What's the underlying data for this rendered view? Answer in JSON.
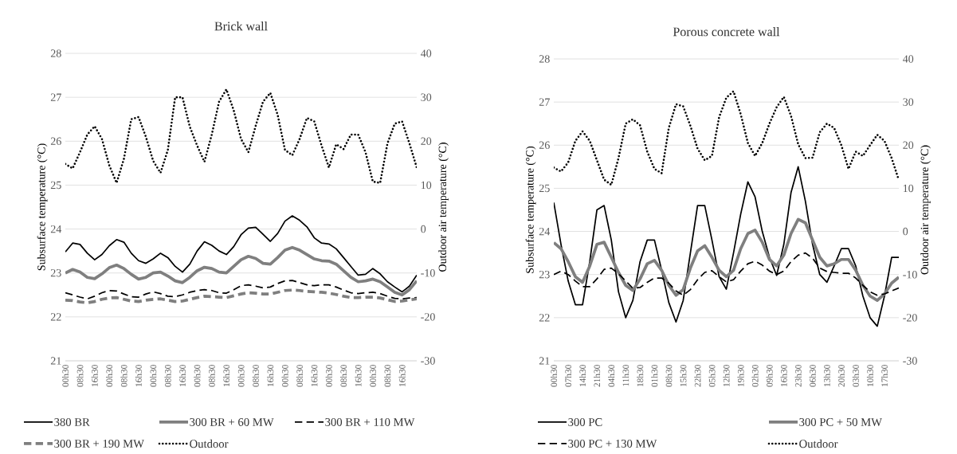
{
  "chart_data": [
    {
      "type": "line",
      "title": "Brick wall",
      "ylabel": "Subsurface temperature (°C)",
      "y2label": "Outdoor air temperature (°C)",
      "categories": [
        "00h30",
        null,
        "08h30",
        null,
        "16h30",
        null,
        "00h30",
        null,
        "08h30",
        null,
        "16h30",
        null,
        "00h30",
        null,
        "08h30",
        null,
        "16h30",
        null,
        "00h30",
        null,
        "08h30",
        null,
        "16h30",
        null,
        "00h30",
        null,
        "08h30",
        null,
        "16h30",
        null,
        "00h30",
        null,
        "08h30",
        null,
        "16h30",
        null,
        "00h30",
        null,
        "08h30",
        null,
        "16h30",
        null,
        "00h30",
        null,
        "08h30",
        null,
        "16h30",
        null,
        null
      ],
      "ylim": [
        21,
        28
      ],
      "yticks": [
        21,
        22,
        23,
        24,
        25,
        26,
        27,
        28
      ],
      "y2lim": [
        -30,
        40
      ],
      "y2ticks": [
        -30,
        -20,
        -10,
        0,
        10,
        20,
        30,
        40
      ],
      "grid": "y",
      "legend": "bottom",
      "series": [
        {
          "name": "380 BR",
          "color": "#000000",
          "line_style": "solid",
          "values": [
            23.48,
            23.68,
            23.65,
            23.45,
            23.3,
            23.42,
            23.62,
            23.76,
            23.7,
            23.45,
            23.28,
            23.22,
            23.32,
            23.45,
            23.35,
            23.15,
            23.02,
            23.2,
            23.5,
            23.71,
            23.63,
            23.5,
            23.42,
            23.6,
            23.87,
            24.02,
            24.04,
            23.88,
            23.72,
            23.9,
            24.18,
            24.3,
            24.2,
            24.05,
            23.8,
            23.68,
            23.66,
            23.55,
            23.35,
            23.15,
            22.95,
            22.97,
            23.1,
            22.98,
            22.8,
            22.68,
            22.57,
            22.7,
            22.95
          ]
        },
        {
          "name": "300 BR + 60 MW",
          "color": "#7f7f7f",
          "line_style": "solid",
          "values": [
            23.0,
            23.08,
            23.02,
            22.9,
            22.87,
            22.98,
            23.12,
            23.18,
            23.1,
            22.97,
            22.86,
            22.9,
            23.0,
            23.02,
            22.93,
            22.82,
            22.78,
            22.9,
            23.05,
            23.13,
            23.1,
            23.02,
            23.0,
            23.15,
            23.3,
            23.38,
            23.33,
            23.22,
            23.2,
            23.35,
            23.52,
            23.58,
            23.52,
            23.42,
            23.32,
            23.28,
            23.27,
            23.2,
            23.05,
            22.9,
            22.8,
            22.82,
            22.86,
            22.8,
            22.68,
            22.56,
            22.5,
            22.62,
            22.82
          ]
        },
        {
          "name": "300 BR + 110 MW",
          "color": "#000000",
          "line_style": "dashed",
          "values": [
            22.55,
            22.5,
            22.45,
            22.41,
            22.47,
            22.55,
            22.6,
            22.59,
            22.52,
            22.46,
            22.45,
            22.52,
            22.57,
            22.53,
            22.47,
            22.46,
            22.5,
            22.56,
            22.6,
            22.62,
            22.6,
            22.55,
            22.54,
            22.62,
            22.71,
            22.73,
            22.7,
            22.66,
            22.68,
            22.76,
            22.82,
            22.83,
            22.78,
            22.73,
            22.71,
            22.73,
            22.73,
            22.68,
            22.61,
            22.55,
            22.53,
            22.55,
            22.56,
            22.53,
            22.47,
            22.42,
            22.41,
            22.43,
            22.44
          ]
        },
        {
          "name": "300 BR + 190 MW",
          "color": "#7f7f7f",
          "line_style": "dashed",
          "values": [
            22.38,
            22.37,
            22.34,
            22.32,
            22.35,
            22.4,
            22.43,
            22.44,
            22.4,
            22.36,
            22.35,
            22.38,
            22.4,
            22.41,
            22.38,
            22.35,
            22.36,
            22.4,
            22.44,
            22.47,
            22.46,
            22.45,
            22.44,
            22.48,
            22.52,
            22.55,
            22.54,
            22.52,
            22.52,
            22.56,
            22.6,
            22.61,
            22.6,
            22.58,
            22.57,
            22.56,
            22.54,
            22.51,
            22.47,
            22.44,
            22.44,
            22.45,
            22.45,
            22.43,
            22.39,
            22.35,
            22.36,
            22.39,
            22.41
          ]
        },
        {
          "name": "Outdoor",
          "color": "#000000",
          "line_style": "dotted",
          "axis": "y2",
          "values": [
            14.8,
            13.8,
            17.5,
            21.5,
            23.4,
            20.5,
            14.5,
            10.5,
            16,
            25,
            25.5,
            21,
            15.5,
            12.8,
            18,
            30,
            30,
            23.3,
            19,
            15.3,
            21.5,
            29,
            31.8,
            27,
            20.5,
            17.5,
            23.5,
            29,
            31,
            26,
            18,
            16.8,
            20.5,
            25.3,
            24.5,
            19,
            14,
            19.3,
            18.2,
            21.5,
            21.5,
            17.5,
            10.8,
            10.5,
            19.5,
            24,
            24.5,
            19.5,
            14
          ]
        }
      ]
    },
    {
      "type": "line",
      "title": "Porous concrete wall",
      "ylabel": "Subsurface temperature (°C)",
      "y2label": "Outdoor air temperature (°C)",
      "categories": [
        "00h30",
        null,
        "07h30",
        null,
        "14h30",
        null,
        "21h30",
        null,
        "04h30",
        null,
        "11h30",
        null,
        "18h30",
        null,
        "01h30",
        null,
        "08h30",
        null,
        "15h30",
        null,
        "22h30",
        null,
        "05h30",
        null,
        "12h30",
        null,
        "19h30",
        null,
        "02h30",
        null,
        "09h30",
        null,
        "16h30",
        null,
        "23h30",
        null,
        "06h30",
        null,
        "13h30",
        null,
        "20h30",
        null,
        "03h30",
        null,
        "10h30",
        null,
        "17h30",
        null,
        null
      ],
      "ylim": [
        21,
        28
      ],
      "yticks": [
        21,
        22,
        23,
        24,
        25,
        26,
        27,
        28
      ],
      "y2lim": [
        -30,
        40
      ],
      "y2ticks": [
        -30,
        -20,
        -10,
        0,
        10,
        20,
        30,
        40
      ],
      "grid": "y",
      "legend": "bottom",
      "series": [
        {
          "name": "300 PC",
          "color": "#000000",
          "line_style": "solid",
          "values": [
            24.67,
            23.7,
            22.85,
            22.3,
            22.3,
            23.3,
            24.5,
            24.6,
            23.8,
            22.6,
            22.0,
            22.4,
            23.3,
            23.8,
            23.8,
            23.1,
            22.35,
            21.9,
            22.4,
            23.5,
            24.6,
            24.6,
            23.8,
            22.95,
            22.66,
            23.5,
            24.4,
            25.15,
            24.8,
            24.0,
            23.4,
            22.98,
            23.7,
            24.9,
            25.5,
            24.7,
            23.7,
            23.0,
            22.82,
            23.2,
            23.6,
            23.6,
            23.2,
            22.5,
            22.0,
            21.8,
            22.5,
            23.4,
            23.4
          ]
        },
        {
          "name": "300 PC + 50 MW",
          "color": "#7f7f7f",
          "line_style": "solid",
          "values": [
            23.74,
            23.6,
            23.3,
            22.95,
            22.82,
            23.2,
            23.7,
            23.75,
            23.4,
            23.05,
            22.75,
            22.63,
            22.9,
            23.25,
            23.33,
            23.1,
            22.75,
            22.52,
            22.65,
            23.15,
            23.55,
            23.67,
            23.4,
            23.1,
            22.95,
            23.1,
            23.6,
            23.95,
            24.03,
            23.75,
            23.35,
            23.2,
            23.45,
            23.95,
            24.28,
            24.2,
            23.8,
            23.4,
            23.2,
            23.25,
            23.35,
            23.35,
            23.1,
            22.75,
            22.5,
            22.4,
            22.55,
            22.8,
            22.94
          ]
        },
        {
          "name": "300 PC + 130 MW",
          "color": "#000000",
          "line_style": "dashed",
          "values": [
            23.0,
            23.08,
            23.0,
            22.85,
            22.72,
            22.72,
            22.9,
            23.12,
            23.15,
            23.02,
            22.85,
            22.68,
            22.7,
            22.82,
            22.92,
            22.92,
            22.8,
            22.62,
            22.52,
            22.65,
            22.88,
            23.05,
            23.09,
            22.95,
            22.83,
            22.88,
            23.08,
            23.25,
            23.31,
            23.22,
            23.08,
            23.0,
            23.08,
            23.3,
            23.45,
            23.5,
            23.38,
            23.15,
            23.07,
            23.05,
            23.03,
            23.03,
            22.92,
            22.75,
            22.6,
            22.52,
            22.55,
            22.62,
            22.69
          ]
        },
        {
          "name": "Outdoor",
          "color": "#000000",
          "line_style": "dotted",
          "axis": "y2",
          "values": [
            14.8,
            13.9,
            16,
            21,
            23.2,
            21,
            16.5,
            12,
            10.8,
            17,
            25,
            26,
            24.6,
            18.5,
            14.5,
            13.5,
            24,
            29.5,
            29,
            24.5,
            19.2,
            16.5,
            17.5,
            26.5,
            31,
            32.5,
            27.2,
            20.5,
            17.5,
            20.5,
            25,
            28.8,
            31.2,
            26.8,
            20.2,
            17,
            17.1,
            23,
            25,
            24,
            20,
            14.5,
            18.5,
            17.5,
            20,
            22.4,
            21,
            17,
            11.9
          ]
        }
      ]
    }
  ]
}
